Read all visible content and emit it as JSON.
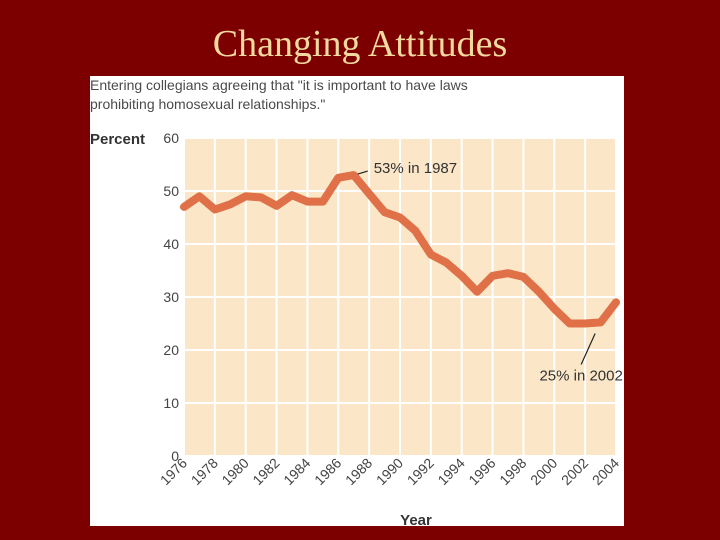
{
  "slide": {
    "title": "Changing Attitudes"
  },
  "chart_data": {
    "type": "line",
    "title": "Entering collegians agreeing that \"it is important to have laws prohibiting homosexual relationships.\"",
    "title_lines": [
      "Entering collegians agreeing that \"it is important to have laws",
      "prohibiting homosexual relationships.\""
    ],
    "ylabel": "Percent",
    "xlabel": "Year",
    "ylim": [
      0,
      60
    ],
    "yticks": [
      0,
      10,
      20,
      30,
      40,
      50,
      60
    ],
    "xlim": [
      1976,
      2004
    ],
    "xticks": [
      1976,
      1978,
      1980,
      1982,
      1984,
      1986,
      1988,
      1990,
      1992,
      1994,
      1996,
      1998,
      2000,
      2002,
      2004
    ],
    "grid": true,
    "colors": {
      "line": "#e07048",
      "plot_bg": "#fbe6c8",
      "grid": "#ffffff"
    },
    "x": [
      1976,
      1977,
      1978,
      1979,
      1980,
      1981,
      1982,
      1983,
      1984,
      1985,
      1986,
      1987,
      1988,
      1989,
      1990,
      1991,
      1992,
      1993,
      1994,
      1995,
      1996,
      1997,
      1998,
      1999,
      2000,
      2001,
      2002,
      2003,
      2004
    ],
    "values": [
      47,
      49,
      46.5,
      47.5,
      49,
      48.8,
      47.2,
      49.2,
      48,
      48,
      52.5,
      53,
      49.5,
      46,
      45,
      42.5,
      38,
      36.5,
      34,
      31,
      34,
      34.5,
      33.8,
      31,
      27.8,
      25,
      25,
      25.2,
      29
    ],
    "annotations": [
      {
        "label": "53% in 1987",
        "x": 1987,
        "y": 53,
        "placement": "upper-right"
      },
      {
        "label": "25% in 2002",
        "x": 2002,
        "y": 25,
        "placement": "below"
      }
    ]
  }
}
